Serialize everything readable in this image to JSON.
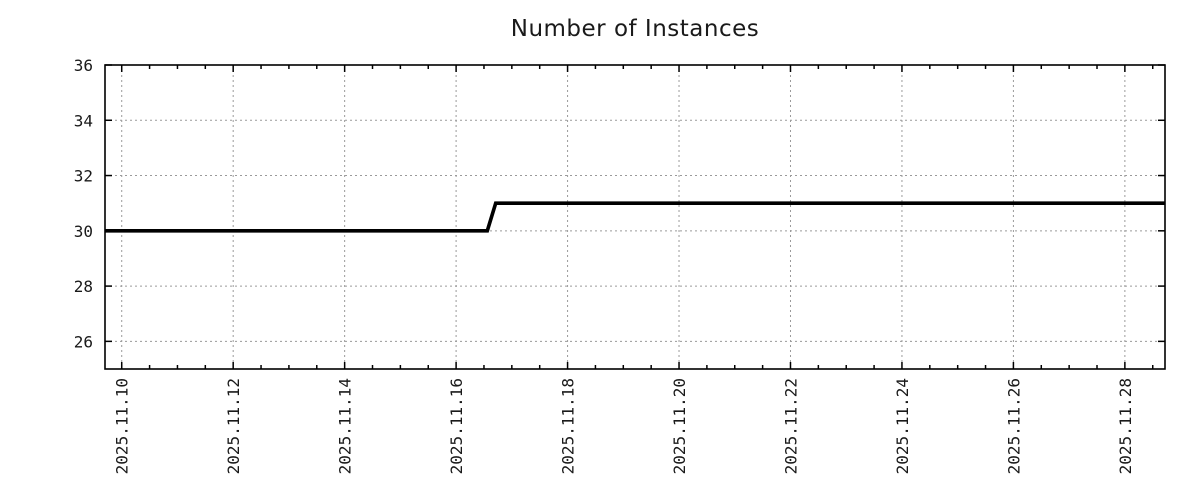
{
  "page": {
    "background": "#ffffff"
  },
  "chart_data": {
    "type": "line",
    "title": "Number of Instances",
    "x_axis": {
      "tick_labels": [
        "2025.11.10",
        "2025.11.12",
        "2025.11.14",
        "2025.11.16",
        "2025.11.18",
        "2025.11.20",
        "2025.11.22",
        "2025.11.24",
        "2025.11.26",
        "2025.11.28"
      ],
      "tick_positions_days": [
        0,
        2,
        4,
        6,
        8,
        10,
        12,
        14,
        16,
        18
      ],
      "range_days": [
        -0.3,
        18.72
      ],
      "minor_tick_step_days": 0.5,
      "days_relative_to": "2025.11.10"
    },
    "y_axis": {
      "tick_labels": [
        "26",
        "28",
        "30",
        "32",
        "34",
        "36"
      ],
      "tick_values": [
        26,
        28,
        30,
        32,
        34,
        36
      ],
      "range": [
        25,
        36
      ]
    },
    "series": [
      {
        "name": "instances",
        "color": "#000000",
        "points": [
          [
            -0.3,
            30
          ],
          [
            6.56,
            30
          ],
          [
            6.71,
            31
          ],
          [
            18.72,
            31
          ]
        ],
        "summary": "constant at 30 until ~2025.11.16 midday, then steps up to 31 and stays at 31"
      }
    ],
    "grid": {
      "show": true,
      "color": "#9a9a9a",
      "style": "dashed"
    },
    "legend": "none",
    "border_color": "#000000",
    "text_color": "#1a1a1a"
  }
}
